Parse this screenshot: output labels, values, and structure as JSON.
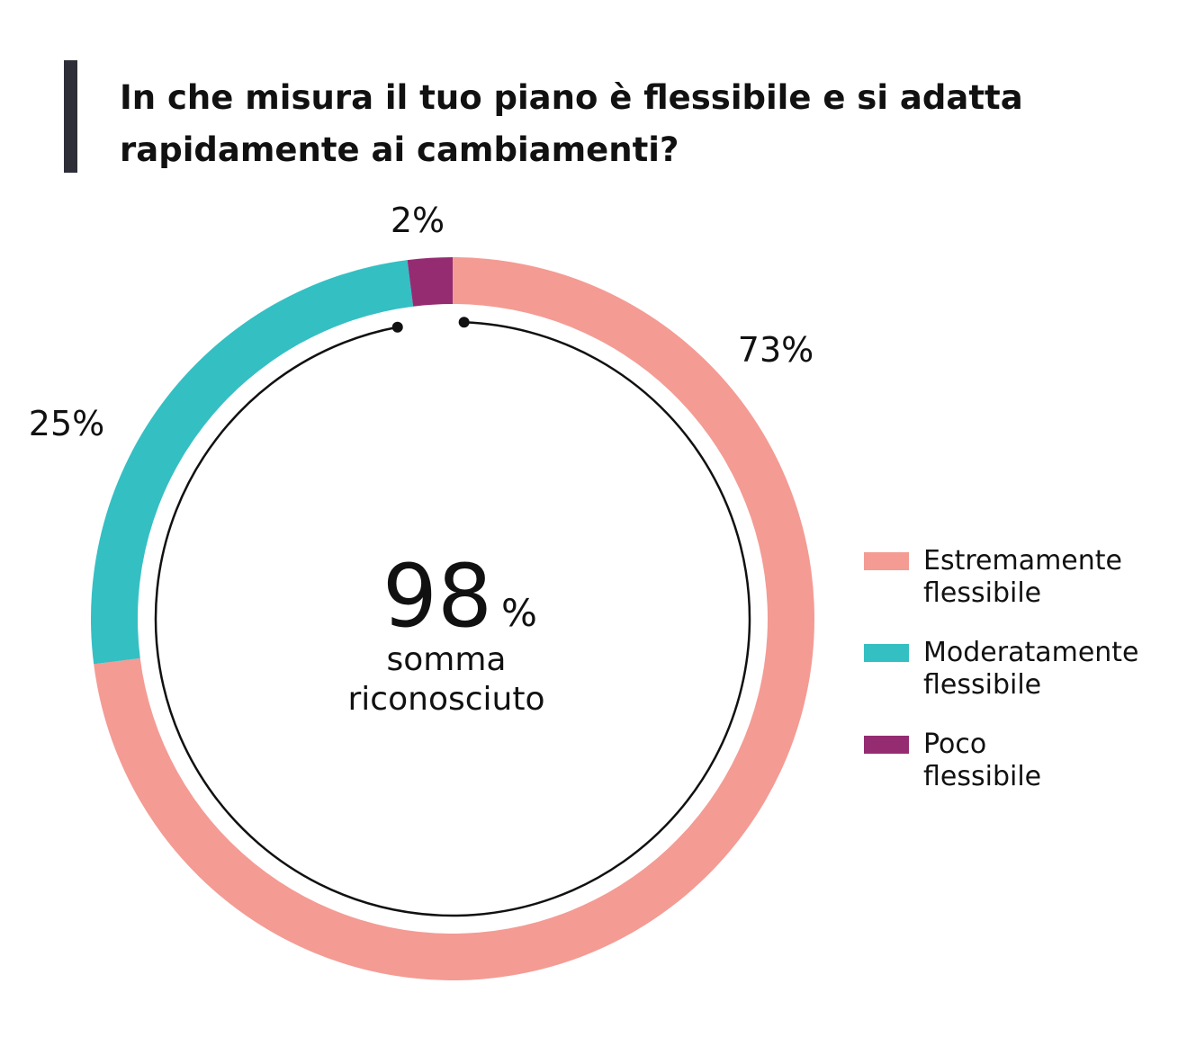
{
  "title_lines": [
    "In che misura il tuo piano è flessibile e si adatta",
    "rapidamente ai cambiamenti?"
  ],
  "center": {
    "value": "98",
    "unit": "%",
    "line1": "somma",
    "line2": "riconosciuto"
  },
  "chart_data": {
    "type": "pie",
    "title": "In che misura il tuo piano è flessibile e si adatta rapidamente ai cambiamenti?",
    "donut": true,
    "categories": [
      "Estremamente flessibile",
      "Moderatamente flessibile",
      "Poco flessibile"
    ],
    "values": [
      73,
      25,
      2
    ],
    "labels": [
      "73%",
      "25%",
      "2%"
    ],
    "colors": [
      "#F49B94",
      "#34BFC3",
      "#952C72"
    ],
    "legend_position": "right",
    "center_annotation": "98% somma riconosciuto"
  },
  "legend": [
    {
      "line1": "Estremamente",
      "line2": "flessibile",
      "color": "#F49B94"
    },
    {
      "line1": "Moderatamente",
      "line2": "flessibile",
      "color": "#34BFC3"
    },
    {
      "line1": "Poco",
      "line2": "flessibile",
      "color": "#952C72"
    }
  ],
  "colors": {
    "title_bar": "#2e2e38",
    "text": "#111111",
    "inner_ring": "#111111"
  }
}
